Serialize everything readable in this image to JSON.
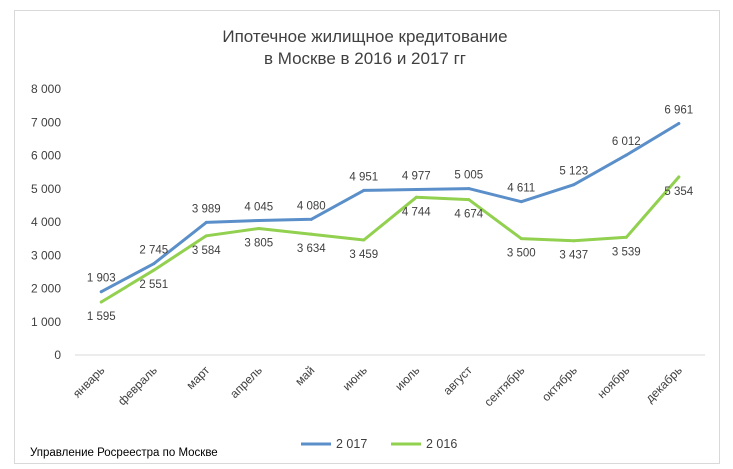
{
  "chart_data": {
    "type": "line",
    "title": [
      "Ипотечное жилищное кредитование",
      "в Москве в 2016 и 2017 гг"
    ],
    "categories": [
      "январь",
      "февраль",
      "март",
      "апрель",
      "май",
      "июнь",
      "июль",
      "август",
      "сентябрь",
      "октябрь",
      "ноябрь",
      "декабрь"
    ],
    "series": [
      {
        "name": "2 017",
        "color": "#5b8fc9",
        "values": [
          1903,
          2745,
          3989,
          4045,
          4080,
          4951,
          4977,
          5005,
          4611,
          5123,
          6012,
          6961
        ],
        "labels": [
          "1 903",
          "2 745",
          "3 989",
          "4 045",
          "4 080",
          "4 951",
          "4 977",
          "5 005",
          "4 611",
          "5 123",
          "6 012",
          "6 961"
        ]
      },
      {
        "name": "2 016",
        "color": "#92d050",
        "values": [
          1595,
          2551,
          3584,
          3805,
          3634,
          3459,
          4744,
          4674,
          3500,
          3437,
          3539,
          5354
        ],
        "labels": [
          "1 595",
          "2 551",
          "3 584",
          "3 805",
          "3 634",
          "3 459",
          "4 744",
          "4 674",
          "3 500",
          "3 437",
          "3 539",
          "5 354"
        ]
      }
    ],
    "ylim": [
      0,
      8000
    ],
    "yticks": [
      0,
      1000,
      2000,
      3000,
      4000,
      5000,
      6000,
      7000,
      8000
    ],
    "ytick_labels": [
      "0",
      "1 000",
      "2 000",
      "3 000",
      "4 000",
      "5 000",
      "6 000",
      "7 000",
      "8 000"
    ],
    "grid": false,
    "legend_position": "bottom"
  },
  "source_note": "Управление Росреестра по Москве"
}
